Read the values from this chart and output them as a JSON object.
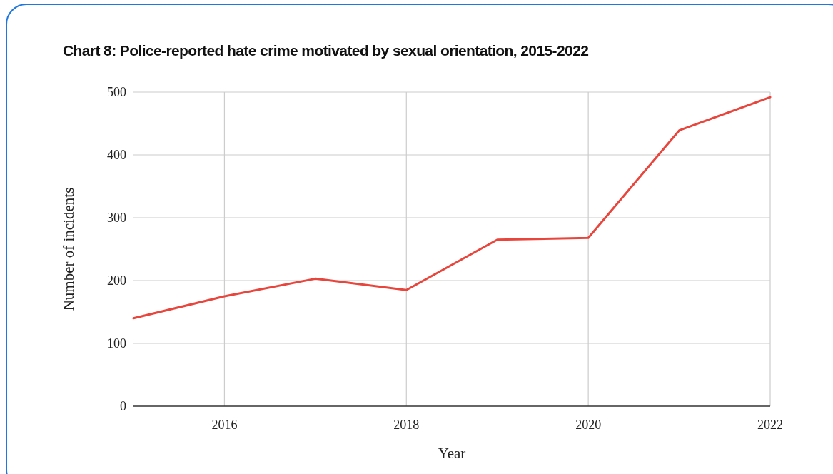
{
  "chart_data": {
    "type": "line",
    "title": "Chart 8: Police-reported hate crime motivated by sexual orientation, 2015-2022",
    "xlabel": "Year",
    "ylabel": "Number of incidents",
    "x": [
      2015,
      2016,
      2017,
      2018,
      2019,
      2020,
      2021,
      2022
    ],
    "series": [
      {
        "color": "#e8453c",
        "values": [
          140,
          175,
          203,
          185,
          265,
          268,
          439,
          492
        ]
      }
    ],
    "xlim": [
      2015,
      2022
    ],
    "xticks": [
      2016,
      2018,
      2020,
      2022
    ],
    "ylim": [
      0,
      500
    ],
    "yticks": [
      0,
      100,
      200,
      300,
      400,
      500
    ],
    "grid": true,
    "marker": "none",
    "line_style": "solid"
  }
}
